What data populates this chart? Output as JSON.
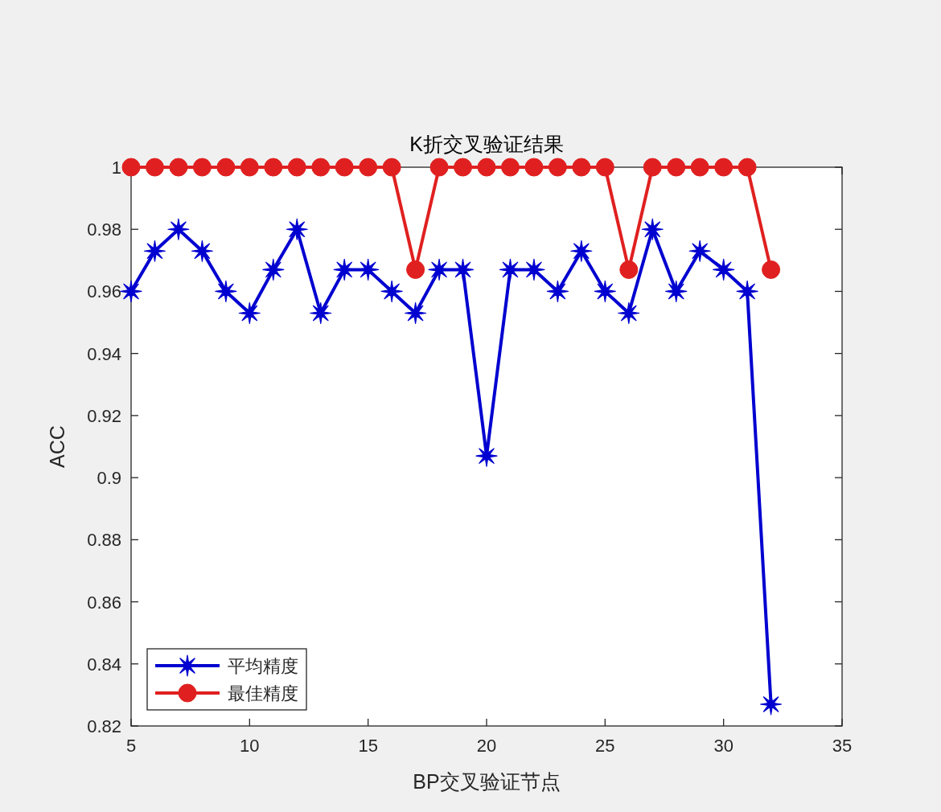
{
  "chart_data": {
    "type": "line",
    "title": "K折交叉验证结果",
    "xlabel": "BP交叉验证节点",
    "ylabel": "ACC",
    "x": [
      5,
      6,
      7,
      8,
      9,
      10,
      11,
      12,
      13,
      14,
      15,
      16,
      17,
      18,
      19,
      20,
      21,
      22,
      23,
      24,
      25,
      26,
      27,
      28,
      29,
      30,
      31,
      32
    ],
    "series": [
      {
        "name": "平均精度",
        "color": "#0000d0",
        "marker": "star",
        "line_style": "solid",
        "values": [
          0.96,
          0.973,
          0.98,
          0.973,
          0.96,
          0.953,
          0.967,
          0.98,
          0.953,
          0.967,
          0.967,
          0.96,
          0.953,
          0.967,
          0.967,
          0.907,
          0.967,
          0.967,
          0.96,
          0.973,
          0.96,
          0.953,
          0.98,
          0.96,
          0.973,
          0.967,
          0.96,
          0.827
        ]
      },
      {
        "name": "最佳精度",
        "color": "#e02020",
        "marker": "circle",
        "line_style": "solid",
        "values": [
          1,
          1,
          1,
          1,
          1,
          1,
          1,
          1,
          1,
          1,
          1,
          1,
          0.967,
          1,
          1,
          1,
          1,
          1,
          1,
          1,
          1,
          0.967,
          1,
          1,
          1,
          1,
          1,
          0.967
        ]
      }
    ],
    "xlim": [
      5,
      35
    ],
    "xticks": [
      5,
      10,
      15,
      20,
      25,
      30,
      35
    ],
    "ylim": [
      0.82,
      1
    ],
    "yticks": [
      0.82,
      0.84,
      0.86,
      0.88,
      0.9,
      0.92,
      0.94,
      0.96,
      0.98,
      1
    ],
    "legend": "bottom left"
  }
}
